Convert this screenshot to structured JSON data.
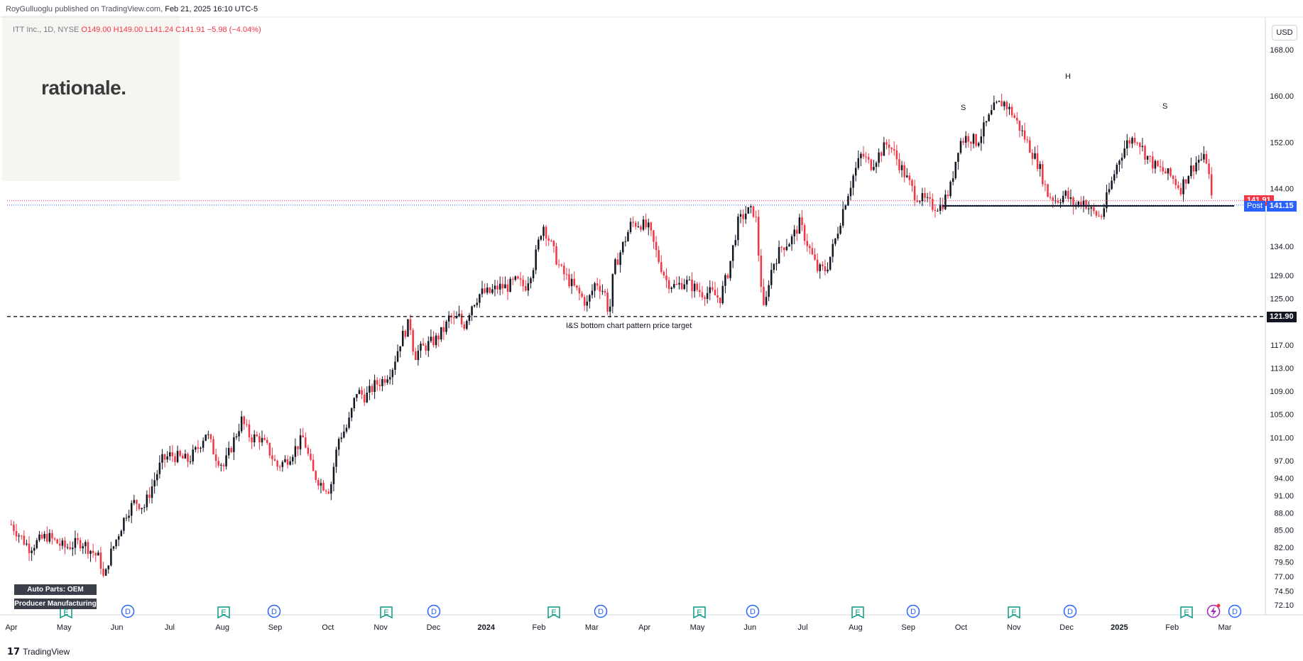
{
  "header": {
    "publisher": "RoyGulluoglu published on TradingView.com,",
    "date": "Feb 21, 2025 16:10 UTC-5"
  },
  "legend": {
    "symbol": "ITT Inc., 1D, NYSE",
    "open": "O149.00",
    "high": "H149.00",
    "low": "L141.24",
    "close": "C141.91",
    "change": "−5.98 (−4.04%)"
  },
  "watermark": "rationale.",
  "currency_button": "USD",
  "price_tags": {
    "last_price": "141.91",
    "post_label": "Post",
    "post_price": "141.15",
    "target_price": "121.90"
  },
  "annotations": {
    "target_label": "I&S bottom chart pattern price target",
    "left_shoulder": "S",
    "head": "H",
    "right_shoulder": "S"
  },
  "sectors": [
    "Auto Parts: OEM",
    "Producer Manufacturing"
  ],
  "footer": {
    "brand": "TradingView"
  },
  "colors": {
    "up": "#131722",
    "down": "#f23645",
    "last": "#f23645",
    "post": "#2962ff",
    "earnings": "#089981",
    "dividend": "#2962ff"
  },
  "chart_data": {
    "type": "candlestick",
    "title": "ITT Inc., 1D, NYSE",
    "y_ticks": [
      168.0,
      160.0,
      152.0,
      144.0,
      134.0,
      129.0,
      125.0,
      117.0,
      113.0,
      109.0,
      105.0,
      101.0,
      97.0,
      94.0,
      91.0,
      88.0,
      85.0,
      82.0,
      79.5,
      77.0,
      74.5,
      72.1
    ],
    "x_ticks": [
      {
        "label": "Apr",
        "bold": false
      },
      {
        "label": "May",
        "bold": false
      },
      {
        "label": "Jun",
        "bold": false
      },
      {
        "label": "Jul",
        "bold": false
      },
      {
        "label": "Aug",
        "bold": false
      },
      {
        "label": "Sep",
        "bold": false
      },
      {
        "label": "Oct",
        "bold": false
      },
      {
        "label": "Nov",
        "bold": false
      },
      {
        "label": "Dec",
        "bold": false
      },
      {
        "label": "2024",
        "bold": true
      },
      {
        "label": "Feb",
        "bold": false
      },
      {
        "label": "Mar",
        "bold": false
      },
      {
        "label": "Apr",
        "bold": false
      },
      {
        "label": "May",
        "bold": false
      },
      {
        "label": "Jun",
        "bold": false
      },
      {
        "label": "Jul",
        "bold": false
      },
      {
        "label": "Aug",
        "bold": false
      },
      {
        "label": "Sep",
        "bold": false
      },
      {
        "label": "Oct",
        "bold": false
      },
      {
        "label": "Nov",
        "bold": false
      },
      {
        "label": "Dec",
        "bold": false
      },
      {
        "label": "2025",
        "bold": true
      },
      {
        "label": "Feb",
        "bold": false
      },
      {
        "label": "Mar",
        "bold": false
      }
    ],
    "ylim": [
      70.5,
      173.5
    ],
    "neckline_price": 141.0,
    "target_price": 121.9,
    "last_price": 141.91,
    "post_price": 141.15,
    "path_points": [
      [
        0,
        86
      ],
      [
        4,
        82
      ],
      [
        8,
        84
      ],
      [
        12,
        82
      ],
      [
        16,
        83
      ],
      [
        20,
        80
      ],
      [
        21,
        76
      ],
      [
        22,
        80
      ],
      [
        24,
        84
      ],
      [
        26,
        88
      ],
      [
        28,
        90
      ],
      [
        30,
        89
      ],
      [
        32,
        93
      ],
      [
        34,
        97
      ],
      [
        36,
        98
      ],
      [
        40,
        97
      ],
      [
        42,
        99
      ],
      [
        44,
        102
      ],
      [
        46,
        98
      ],
      [
        48,
        96
      ],
      [
        50,
        100
      ],
      [
        52,
        104
      ],
      [
        54,
        101
      ],
      [
        56,
        101
      ],
      [
        58,
        99
      ],
      [
        60,
        96
      ],
      [
        62,
        97
      ],
      [
        64,
        99
      ],
      [
        66,
        101
      ],
      [
        68,
        95
      ],
      [
        70,
        93
      ],
      [
        72,
        92
      ],
      [
        73,
        97
      ],
      [
        74,
        101
      ],
      [
        76,
        103
      ],
      [
        78,
        109
      ],
      [
        80,
        108
      ],
      [
        82,
        110
      ],
      [
        84,
        111
      ],
      [
        86,
        113
      ],
      [
        88,
        118
      ],
      [
        90,
        121
      ],
      [
        91,
        115
      ],
      [
        92,
        116
      ],
      [
        94,
        117
      ],
      [
        96,
        118
      ],
      [
        98,
        120
      ],
      [
        99,
        122
      ],
      [
        100,
        121
      ],
      [
        101,
        122
      ],
      [
        102,
        120
      ],
      [
        104,
        124
      ],
      [
        106,
        126
      ],
      [
        108,
        126
      ],
      [
        110,
        127
      ],
      [
        112,
        127
      ],
      [
        114,
        128
      ],
      [
        116,
        127
      ],
      [
        118,
        131
      ],
      [
        120,
        138
      ],
      [
        122,
        134
      ],
      [
        124,
        130
      ],
      [
        126,
        128
      ],
      [
        128,
        126
      ],
      [
        130,
        124
      ],
      [
        132,
        128
      ],
      [
        134,
        126
      ],
      [
        135,
        122
      ],
      [
        136,
        130
      ],
      [
        138,
        134
      ],
      [
        140,
        138
      ],
      [
        142,
        138
      ],
      [
        144,
        137
      ],
      [
        146,
        132
      ],
      [
        148,
        128
      ],
      [
        150,
        127
      ],
      [
        152,
        128
      ],
      [
        154,
        127
      ],
      [
        156,
        126
      ],
      [
        158,
        126
      ],
      [
        160,
        125
      ],
      [
        162,
        130
      ],
      [
        164,
        138
      ],
      [
        166,
        140
      ],
      [
        168,
        140
      ],
      [
        169,
        130
      ],
      [
        170,
        122
      ],
      [
        171,
        128
      ],
      [
        172,
        131
      ],
      [
        174,
        134
      ],
      [
        176,
        135
      ],
      [
        178,
        138
      ],
      [
        180,
        134
      ],
      [
        182,
        130
      ],
      [
        184,
        130
      ],
      [
        186,
        135
      ],
      [
        188,
        141
      ],
      [
        190,
        146
      ],
      [
        192,
        150
      ],
      [
        194,
        148
      ],
      [
        196,
        150
      ],
      [
        198,
        152
      ],
      [
        200,
        149
      ],
      [
        202,
        146
      ],
      [
        204,
        143
      ],
      [
        206,
        142
      ],
      [
        208,
        141
      ],
      [
        210,
        141
      ],
      [
        212,
        144
      ],
      [
        214,
        152
      ],
      [
        216,
        153
      ],
      [
        218,
        152
      ],
      [
        220,
        155
      ],
      [
        222,
        158
      ],
      [
        224,
        159
      ],
      [
        226,
        157
      ],
      [
        228,
        154
      ],
      [
        230,
        151
      ],
      [
        232,
        148
      ],
      [
        234,
        143
      ],
      [
        236,
        142
      ],
      [
        238,
        143
      ],
      [
        240,
        141
      ],
      [
        242,
        142
      ],
      [
        244,
        140
      ],
      [
        246,
        139
      ],
      [
        248,
        144
      ],
      [
        250,
        149
      ],
      [
        252,
        152
      ],
      [
        254,
        153
      ],
      [
        256,
        150
      ],
      [
        258,
        148
      ],
      [
        260,
        147
      ],
      [
        262,
        146
      ],
      [
        264,
        144
      ],
      [
        266,
        147
      ],
      [
        268,
        149
      ],
      [
        270,
        149
      ],
      [
        271,
        142
      ]
    ]
  }
}
